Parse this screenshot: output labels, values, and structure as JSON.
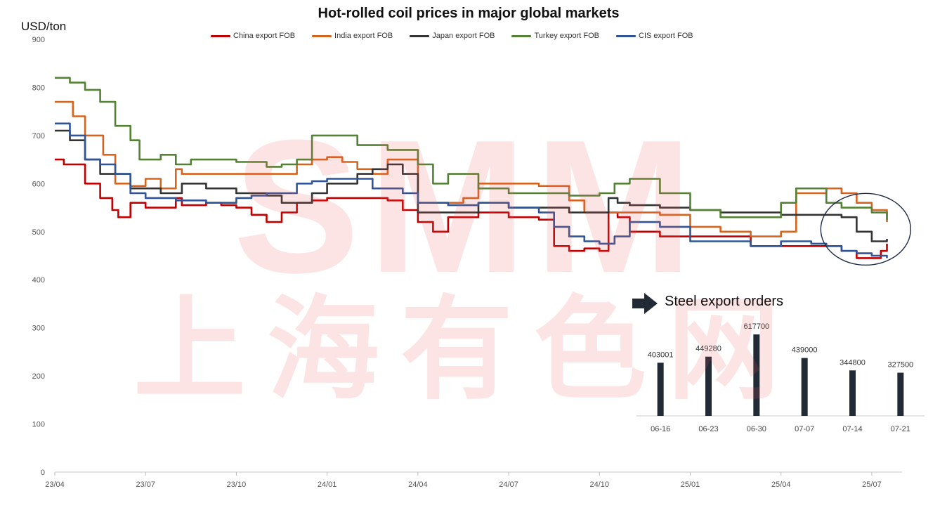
{
  "chart_data": [
    {
      "type": "line",
      "title": "Hot-rolled coil prices in major global markets",
      "ylabel": "USD/ton",
      "xlabel": "",
      "ylim": [
        0,
        900
      ],
      "yticks": [
        0,
        100,
        200,
        300,
        400,
        500,
        600,
        700,
        800,
        900
      ],
      "xlim": [
        0,
        28
      ],
      "x_tick_labels": [
        {
          "label": "23/04",
          "x": 0
        },
        {
          "label": "23/07",
          "x": 3
        },
        {
          "label": "23/10",
          "x": 6
        },
        {
          "label": "24/01",
          "x": 9
        },
        {
          "label": "24/04",
          "x": 12
        },
        {
          "label": "24/07",
          "x": 15
        },
        {
          "label": "24/10",
          "x": 18
        },
        {
          "label": "25/01",
          "x": 21
        },
        {
          "label": "25/04",
          "x": 24
        },
        {
          "label": "25/07",
          "x": 27
        }
      ],
      "legend_position": "top",
      "grid": false,
      "series": [
        {
          "name": "China export FOB",
          "color": "#C00000",
          "x": [
            0,
            0.3,
            0.6,
            1,
            1.5,
            1.9,
            2.1,
            2.5,
            3,
            3.5,
            4,
            4.2,
            5,
            5.5,
            6,
            6.5,
            7,
            7.5,
            8,
            8.5,
            9,
            10,
            11,
            11.5,
            12,
            12.5,
            13,
            14,
            15,
            16,
            16.5,
            17,
            17.5,
            18,
            18.3,
            18.6,
            19,
            20,
            21,
            22,
            23,
            24,
            25,
            26,
            26.5,
            27,
            27.3,
            27.5
          ],
          "y": [
            650,
            640,
            640,
            600,
            570,
            545,
            530,
            560,
            550,
            550,
            570,
            555,
            560,
            555,
            550,
            535,
            520,
            540,
            560,
            565,
            570,
            570,
            565,
            545,
            520,
            500,
            530,
            540,
            530,
            525,
            470,
            460,
            465,
            460,
            540,
            530,
            500,
            490,
            490,
            490,
            470,
            470,
            470,
            460,
            445,
            445,
            460,
            475
          ]
        },
        {
          "name": "India export FOB",
          "color": "#D5651E",
          "x": [
            0,
            0.4,
            0.6,
            1,
            1.5,
            1.6,
            2,
            2.5,
            3,
            3.5,
            4,
            4.2,
            4.8,
            5,
            6,
            7,
            8,
            8.5,
            9,
            9.5,
            10,
            10.5,
            11,
            12,
            12.5,
            13,
            13.5,
            14,
            14.5,
            15,
            15.5,
            16,
            17,
            17.5,
            18,
            19,
            20,
            21,
            22,
            23,
            24,
            24.5,
            25,
            25.5,
            26,
            26.5,
            27,
            27.5
          ],
          "y": [
            770,
            770,
            740,
            700,
            700,
            660,
            600,
            595,
            610,
            590,
            630,
            620,
            620,
            620,
            620,
            620,
            640,
            650,
            655,
            645,
            630,
            620,
            650,
            560,
            560,
            560,
            570,
            600,
            600,
            600,
            600,
            595,
            565,
            540,
            540,
            540,
            535,
            510,
            500,
            490,
            500,
            580,
            580,
            590,
            580,
            560,
            545,
            520
          ]
        },
        {
          "name": "Japan export FOB",
          "color": "#333333",
          "x": [
            0,
            0.5,
            1,
            1.5,
            2,
            2.5,
            3,
            3.5,
            4,
            4.2,
            5,
            6,
            7,
            7.5,
            8,
            8.5,
            9,
            10,
            10.5,
            11,
            11.5,
            12,
            13,
            14,
            15,
            16,
            17,
            18,
            18.3,
            18.6,
            19,
            20,
            21,
            22,
            23,
            24,
            25,
            26,
            26.5,
            27,
            27.5
          ],
          "y": [
            710,
            690,
            650,
            620,
            620,
            590,
            590,
            580,
            580,
            600,
            590,
            580,
            575,
            560,
            560,
            580,
            600,
            620,
            630,
            640,
            620,
            540,
            540,
            560,
            550,
            550,
            540,
            540,
            570,
            560,
            555,
            550,
            545,
            540,
            540,
            535,
            535,
            530,
            500,
            480,
            485
          ]
        },
        {
          "name": "Turkey export FOB",
          "color": "#548235",
          "x": [
            0,
            0.5,
            1,
            1.5,
            2,
            2.5,
            2.8,
            3,
            3.5,
            4,
            4.5,
            5,
            6,
            7,
            7.5,
            8,
            8.5,
            9,
            10,
            11,
            12,
            12.5,
            13,
            14,
            15,
            16,
            17,
            17.5,
            18,
            18.5,
            19,
            20,
            21,
            22,
            23,
            24,
            24.5,
            25,
            25.5,
            26,
            26.5,
            27,
            27.5
          ],
          "y": [
            820,
            810,
            795,
            770,
            720,
            690,
            650,
            650,
            660,
            640,
            650,
            650,
            645,
            635,
            640,
            650,
            700,
            700,
            680,
            670,
            640,
            600,
            620,
            590,
            580,
            580,
            575,
            575,
            580,
            600,
            610,
            580,
            545,
            530,
            530,
            560,
            590,
            590,
            560,
            550,
            550,
            540,
            525
          ]
        },
        {
          "name": "CIS export FOB",
          "color": "#2F5597",
          "x": [
            0,
            0.5,
            1,
            1.5,
            2,
            2.5,
            3,
            4,
            5,
            6,
            6.5,
            7,
            8,
            8.5,
            9,
            10,
            10.5,
            11,
            11.5,
            12,
            13,
            14,
            15,
            16,
            16.5,
            17,
            17.5,
            18,
            18.5,
            19,
            20,
            21,
            22,
            23,
            24,
            25,
            25.5,
            26,
            26.5,
            27,
            27.5
          ],
          "y": [
            725,
            700,
            650,
            640,
            620,
            580,
            570,
            565,
            560,
            570,
            575,
            580,
            600,
            605,
            610,
            610,
            590,
            590,
            580,
            560,
            555,
            560,
            550,
            540,
            510,
            490,
            480,
            475,
            490,
            520,
            510,
            480,
            480,
            470,
            480,
            475,
            470,
            460,
            455,
            450,
            445
          ]
        }
      ]
    },
    {
      "type": "bar",
      "title": "Steel export orders",
      "categories": [
        "06-16",
        "06-23",
        "06-30",
        "07-07",
        "07-14",
        "07-21"
      ],
      "values": [
        403001,
        449280,
        617700,
        439000,
        344800,
        327500
      ],
      "data_labels": [
        "403001",
        "449280",
        "617700",
        "439000",
        "344800",
        "327500"
      ],
      "color": "#222A35"
    }
  ],
  "watermark": {
    "logo": "SMM",
    "chinese": "上海有色网"
  }
}
